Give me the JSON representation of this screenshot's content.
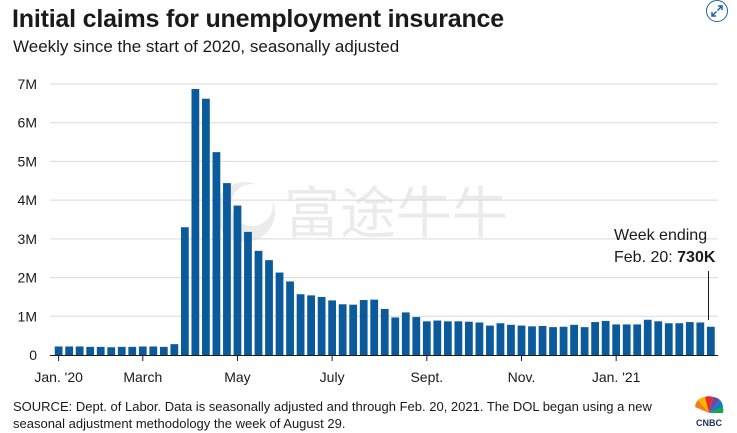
{
  "header": {
    "title": "Initial claims for unemployment insurance",
    "subtitle": "Weekly since the start of 2020, seasonally adjusted"
  },
  "annotation": {
    "line1": "Week ending",
    "line2_prefix": "Feb. 20: ",
    "line2_value": "730K"
  },
  "watermark": {
    "text": "富途牛牛"
  },
  "source": "SOURCE: Dept. of Labor. Data is seasonally adjusted and through Feb. 20, 2021. The DOL began using a new seasonal adjustment methodology the week of August 29.",
  "logo": {
    "text": "CNBC"
  },
  "icons": {
    "expand": "expand-icon"
  },
  "colors": {
    "bar": "#0a5a9c",
    "text": "#1a1a1a",
    "grid": "#d9d9d9",
    "accent": "#1f62a8"
  },
  "chart_data": {
    "type": "bar",
    "title": "Initial claims for unemployment insurance",
    "subtitle": "Weekly since the start of 2020, seasonally adjusted",
    "xlabel": "",
    "ylabel": "",
    "ylim": [
      0,
      7000000
    ],
    "yticks": [
      0,
      1000000,
      2000000,
      3000000,
      4000000,
      5000000,
      6000000,
      7000000
    ],
    "ytick_labels": [
      "0",
      "1M",
      "2M",
      "3M",
      "4M",
      "5M",
      "6M",
      "7M"
    ],
    "xtick_labels": [
      {
        "label": "Jan. '20",
        "index": 0
      },
      {
        "label": "March",
        "index": 8
      },
      {
        "label": "May",
        "index": 17
      },
      {
        "label": "July",
        "index": 26
      },
      {
        "label": "Sept.",
        "index": 35
      },
      {
        "label": "Nov.",
        "index": 44
      },
      {
        "label": "Jan. '21",
        "index": 53
      }
    ],
    "grid": true,
    "values": [
      220000,
      220000,
      220000,
      210000,
      210000,
      200000,
      210000,
      210000,
      220000,
      220000,
      210000,
      280000,
      3300000,
      6870000,
      6620000,
      5240000,
      4440000,
      3860000,
      3180000,
      2690000,
      2450000,
      2130000,
      1900000,
      1570000,
      1540000,
      1500000,
      1410000,
      1310000,
      1300000,
      1420000,
      1430000,
      1190000,
      970000,
      1100000,
      980000,
      870000,
      890000,
      870000,
      870000,
      860000,
      840000,
      760000,
      820000,
      780000,
      760000,
      740000,
      750000,
      720000,
      730000,
      780000,
      720000,
      850000,
      880000,
      790000,
      790000,
      790000,
      910000,
      870000,
      820000,
      820000,
      850000,
      840000,
      730000
    ]
  }
}
